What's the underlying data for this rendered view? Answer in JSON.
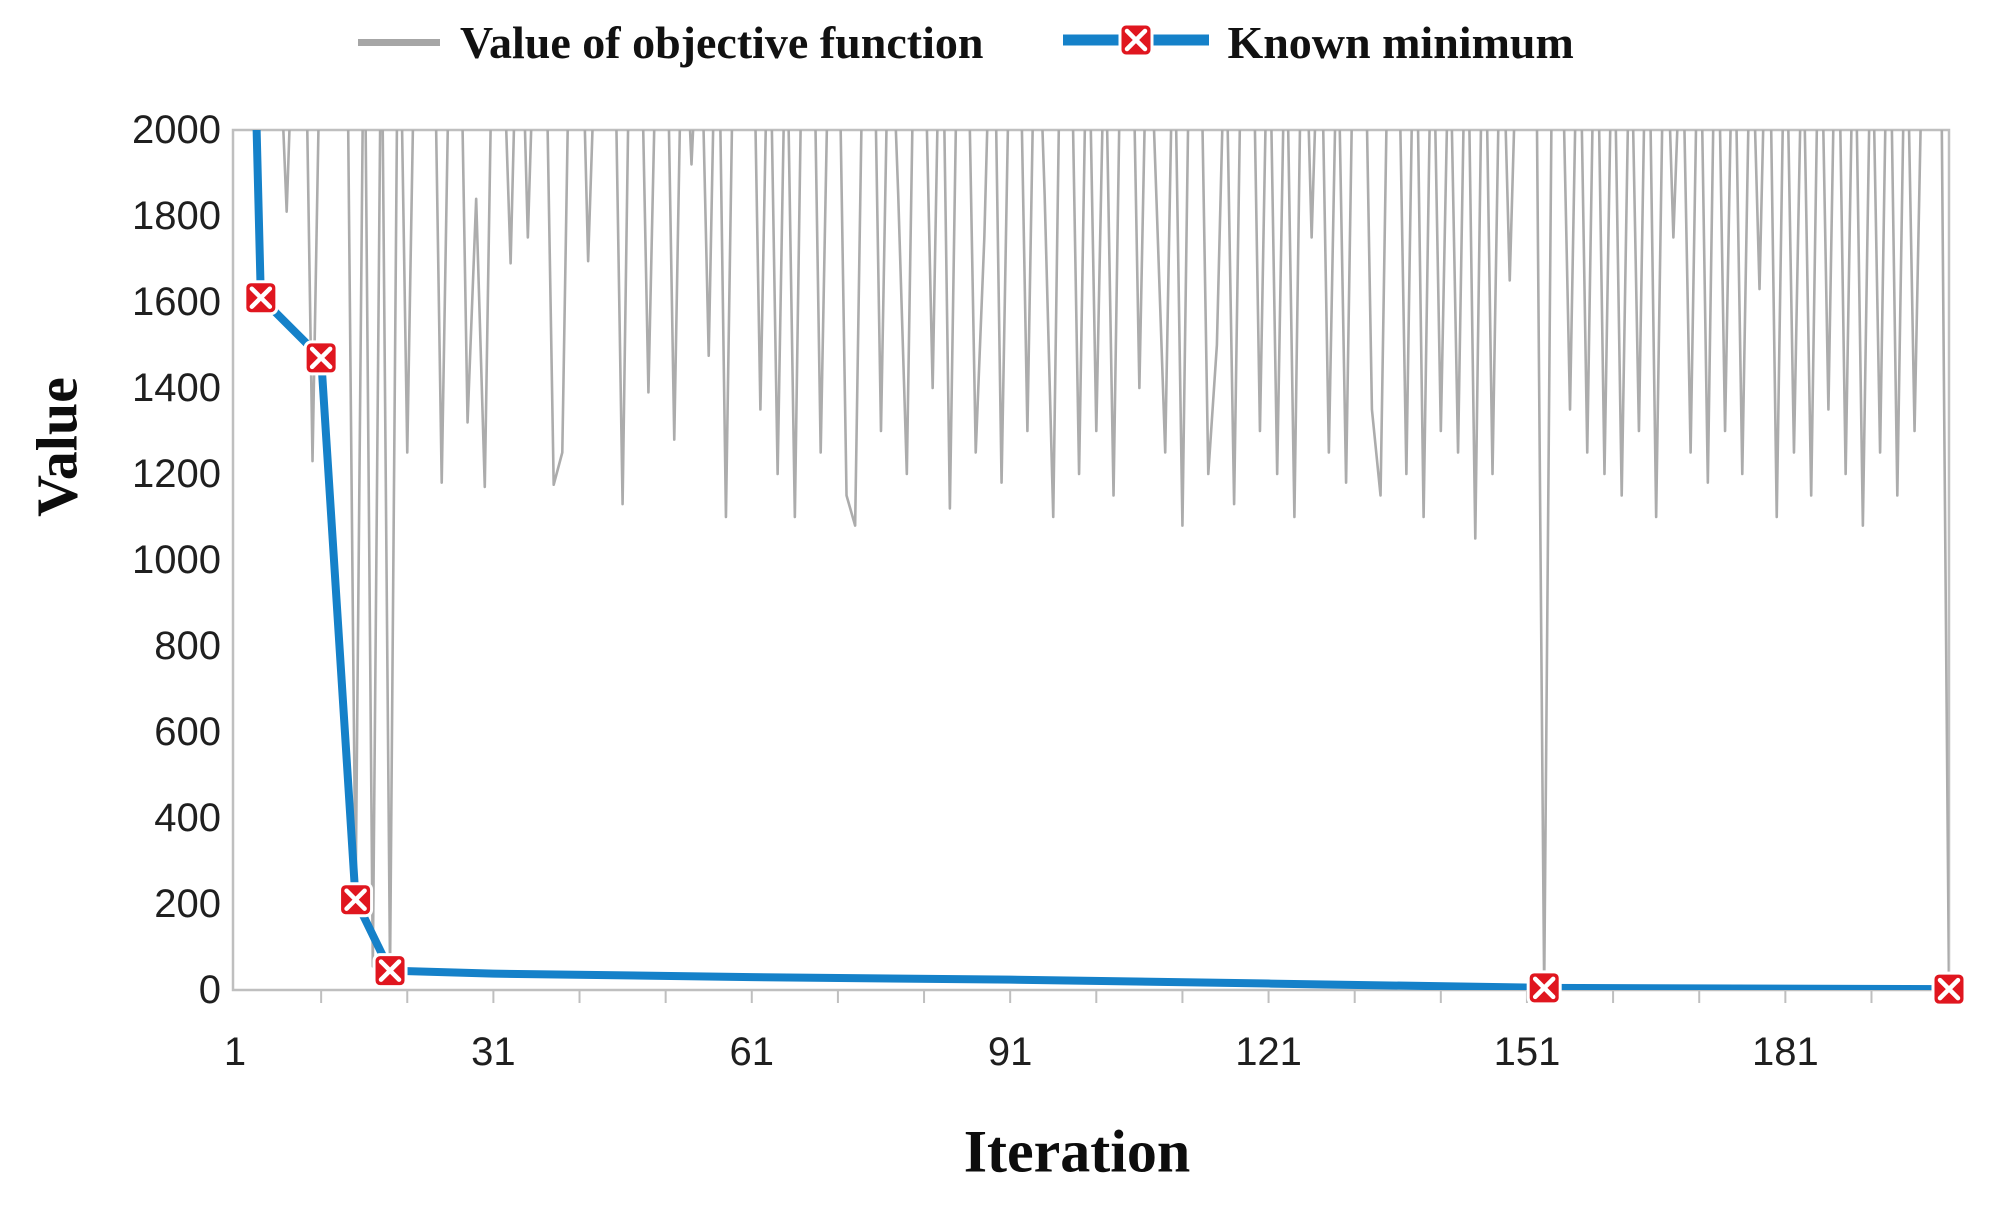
{
  "figure": {
    "background": "#ffffff"
  },
  "legend": {
    "items": [
      {
        "label": "Value of objective function",
        "series": "objective_function",
        "swatch": "gray-line",
        "color": "#a6a6a6"
      },
      {
        "label": "Known minimum",
        "series": "known_minimum",
        "swatch": "blue-line-red-x-marker",
        "color": "#1581c9",
        "marker_color": "#e0161f"
      }
    ]
  },
  "axes": {
    "x": {
      "title": "Iteration",
      "tick_labels": [
        1,
        31,
        61,
        91,
        121,
        151,
        181
      ],
      "minor_tick_start": 11,
      "minor_tick_step": 10,
      "minor_tick_end": 191,
      "range": [
        1,
        200
      ]
    },
    "y": {
      "title": "Value",
      "tick_labels": [
        0,
        200,
        400,
        600,
        800,
        1000,
        1200,
        1400,
        1600,
        1800,
        2000
      ],
      "range": [
        0,
        2000
      ]
    }
  },
  "chart_data": {
    "type": "line",
    "title": "",
    "xlabel": "Iteration",
    "ylabel": "Value",
    "xlim": [
      1,
      200
    ],
    "ylim": [
      0,
      2000
    ],
    "grid": false,
    "legend_position": "top",
    "clipped_above": 2000,
    "series": [
      {
        "name": "Value of objective function",
        "color": "#acacac",
        "line_width": 2.6,
        "note": "values above 2000 are clipped by the plot top edge; estimated from pixels",
        "x_start": 1,
        "values": [
          2400,
          2300,
          2500,
          2350,
          2450,
          2300,
          1810,
          2400,
          2500,
          1230,
          2350,
          2500,
          2400,
          2300,
          210,
          2400,
          55,
          2350,
          45,
          2500,
          1250,
          2400,
          2300,
          2450,
          1180,
          2350,
          2500,
          1320,
          1840,
          1170,
          2400,
          2300,
          1690,
          2500,
          1750,
          2400,
          2350,
          1175,
          1250,
          2450,
          2500,
          1695,
          2300,
          2400,
          2350,
          1130,
          2500,
          2400,
          1390,
          2300,
          2450,
          1280,
          2400,
          1920,
          2350,
          1475,
          2500,
          1100,
          2400,
          2300,
          2500,
          1350,
          2400,
          1200,
          2350,
          1100,
          2450,
          2500,
          1250,
          2300,
          2400,
          1150,
          1080,
          2350,
          2500,
          1300,
          2400,
          1850,
          1200,
          2450,
          2300,
          1400,
          2500,
          1120,
          2400,
          2350,
          1250,
          1750,
          2500,
          1180,
          2300,
          2400,
          1300,
          2450,
          1850,
          1100,
          2500,
          2350,
          1200,
          2400,
          1300,
          2300,
          1150,
          2450,
          2500,
          1400,
          2400,
          1830,
          1250,
          2350,
          1080,
          2500,
          2400,
          1200,
          1500,
          2300,
          1130,
          2450,
          2500,
          1300,
          2400,
          1200,
          2350,
          1100,
          2500,
          1750,
          2400,
          1250,
          2300,
          1180,
          2450,
          2500,
          1350,
          1150,
          2400,
          2350,
          1200,
          2500,
          1100,
          2400,
          1300,
          2300,
          1250,
          2450,
          1050,
          2500,
          1200,
          2400,
          1650,
          2350,
          2500,
          2400,
          3,
          2400,
          2300,
          1350,
          2450,
          1250,
          2500,
          1200,
          2400,
          1150,
          2350,
          1300,
          2500,
          1100,
          2400,
          1750,
          2300,
          1250,
          2450,
          1180,
          2500,
          1300,
          2400,
          1200,
          2350,
          1630,
          2500,
          1100,
          2400,
          1250,
          2300,
          1150,
          2450,
          1350,
          2500,
          1200,
          2400,
          1080,
          2350,
          1250,
          2500,
          1150,
          2400,
          1300,
          2300,
          2450,
          2400,
          2
        ]
      },
      {
        "name": "Known minimum",
        "color": "#1581c9",
        "line_width": 8,
        "points": [
          [
            1,
            4000
          ],
          [
            4,
            1610
          ],
          [
            11,
            1470
          ],
          [
            15,
            210
          ],
          [
            19,
            45
          ],
          [
            31,
            38
          ],
          [
            61,
            30
          ],
          [
            91,
            24
          ],
          [
            121,
            15
          ],
          [
            153,
            5
          ],
          [
            200,
            2
          ]
        ],
        "markers": [
          [
            4,
            1610
          ],
          [
            11,
            1470
          ],
          [
            15,
            210
          ],
          [
            19,
            45
          ],
          [
            153,
            5
          ],
          [
            200,
            2
          ]
        ],
        "marker_shape": "red-square-white-x"
      }
    ]
  },
  "colors": {
    "axis_border": "#bfbfbf",
    "objective_line": "#acacac",
    "minimum_line": "#1581c9",
    "marker_fill": "#e0161f",
    "marker_cross": "#ffffff",
    "tick_text": "#1f1f1f",
    "title_text": "#0d0d0d"
  }
}
